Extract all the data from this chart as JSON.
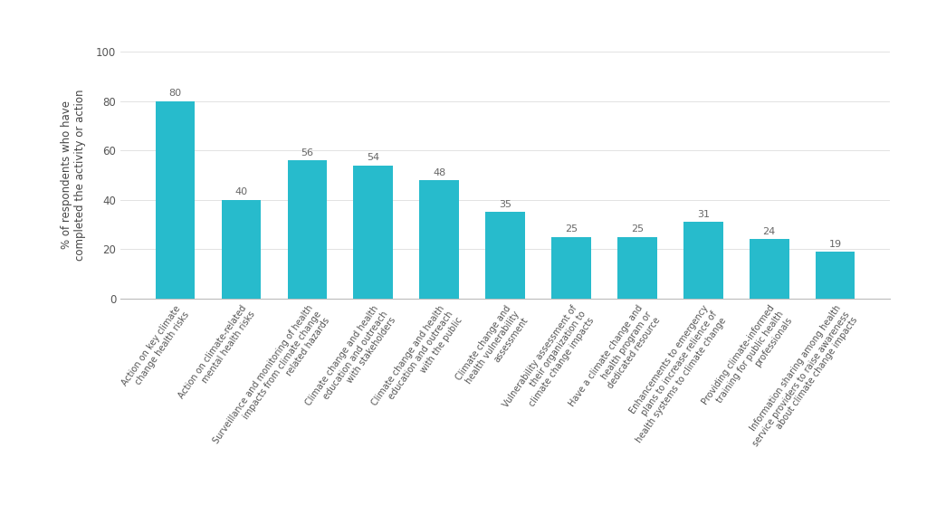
{
  "categories": [
    "Action on key climate\nchange health risks",
    "Action on climate-related\nmental health risks",
    "Surveillance and monitoring of health\nimpacts from climate change\nrelated hazards",
    "Climate change and health\neducation and outreach\nwith stakeholders",
    "Climate change and health\neducation and outreach\nwith the public",
    "Climate change and\nhealth vulnerability\nassessment",
    "Vulnerability assessment of\ntheir organization to\nclimate change impacts",
    "Have a climate change and\nhealth program or\ndedicated resource",
    "Enhancements to emergency\nplans to increase relience of\nhealth systems to climate change",
    "Providing climate-informed\ntraining for public health\nprofessionals",
    "Information sharing among health\nservice providers to raise awareness\nabout climate change impacts"
  ],
  "values": [
    80,
    40,
    56,
    54,
    48,
    35,
    25,
    25,
    31,
    24,
    19
  ],
  "bar_color": "#27BBCC",
  "ylabel": "% of respondents who have\ncompleted the activity or action",
  "ylim": [
    0,
    100
  ],
  "yticks": [
    0,
    20,
    40,
    60,
    80,
    100
  ],
  "background_color": "#ffffff",
  "label_fontsize": 7.0,
  "value_fontsize": 8,
  "ylabel_fontsize": 8.5,
  "bar_width": 0.6
}
